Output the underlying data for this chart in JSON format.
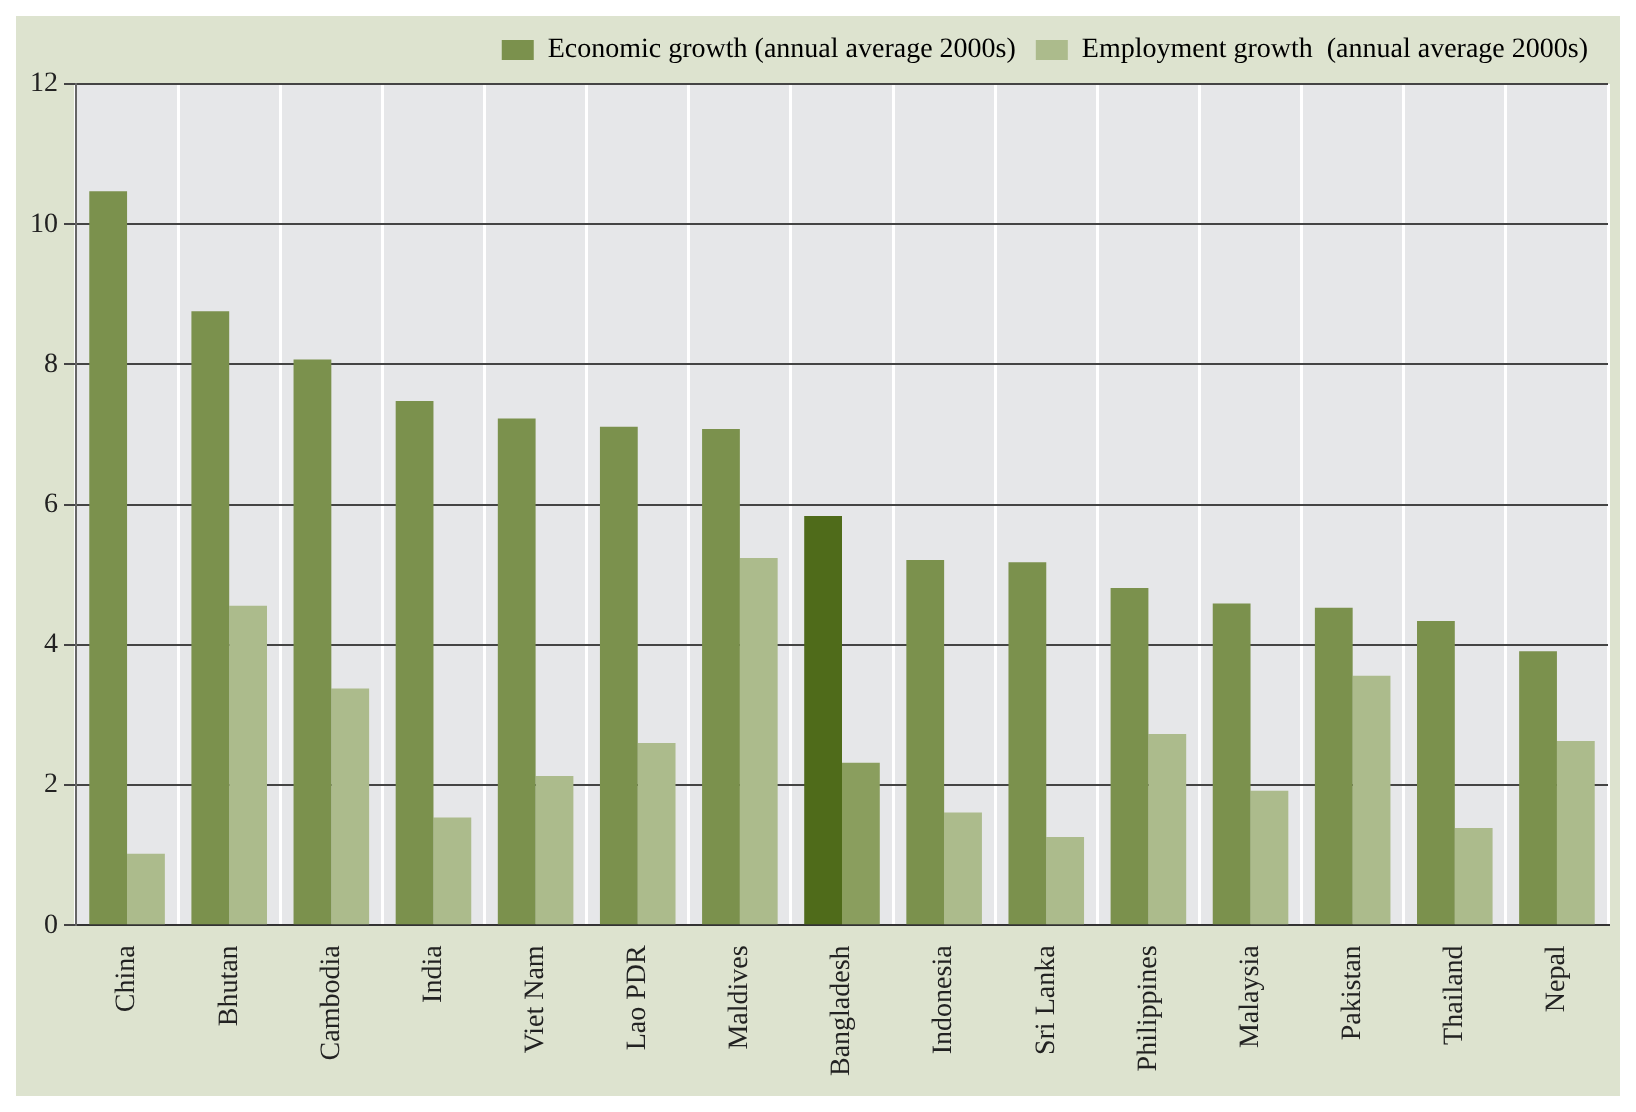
{
  "chart_data": {
    "type": "bar",
    "categories": [
      "China",
      "Bhutan",
      "Cambodia",
      "India",
      "Viet Nam",
      "Lao PDR",
      "Maldives",
      "Bangladesh",
      "Indonesia",
      "Sri Lanka",
      "Philippines",
      "Malaysia",
      "Pakistan",
      "Thailand",
      "Nepal"
    ],
    "series": [
      {
        "name": "Economic growth (annual average 2000s)",
        "color": "#7b914d",
        "colors": [
          "#7b914d",
          "#7b914d",
          "#7b914d",
          "#7b914d",
          "#7b914d",
          "#7b914d",
          "#7b914d",
          "#4f6b1a",
          "#7b914d",
          "#7b914d",
          "#7b914d",
          "#7b914d",
          "#7b914d",
          "#7b914d",
          "#7b914d"
        ],
        "values": [
          10.47,
          8.76,
          8.07,
          7.48,
          7.23,
          7.11,
          7.08,
          5.84,
          5.21,
          5.18,
          4.81,
          4.59,
          4.53,
          4.34,
          3.91
        ]
      },
      {
        "name": "Employment growth  (annual average 2000s)",
        "color": "#acbb8c",
        "colors": [
          "#acbb8c",
          "#acbb8c",
          "#acbb8c",
          "#acbb8c",
          "#acbb8c",
          "#acbb8c",
          "#acbb8c",
          "#8a9e5e",
          "#acbb8c",
          "#acbb8c",
          "#acbb8c",
          "#acbb8c",
          "#acbb8c",
          "#acbb8c",
          "#acbb8c"
        ],
        "values": [
          1.02,
          4.56,
          3.38,
          1.54,
          2.13,
          2.6,
          5.24,
          2.32,
          1.61,
          1.26,
          2.73,
          1.92,
          3.56,
          1.39,
          2.63
        ]
      }
    ],
    "ylim": [
      0,
      12
    ],
    "yticks": [
      0,
      2,
      4,
      6,
      8,
      10,
      12
    ],
    "grid": true,
    "legend": "top right"
  }
}
